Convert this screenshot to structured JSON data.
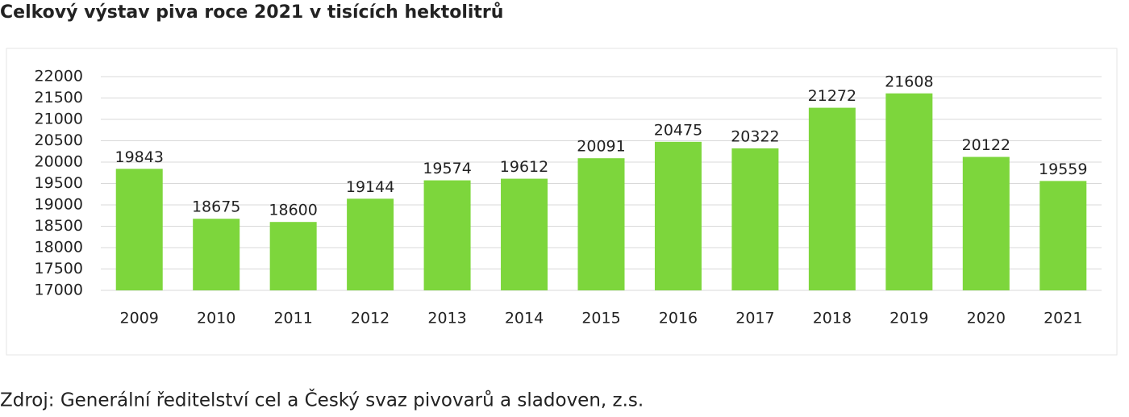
{
  "chart_data": {
    "type": "bar",
    "title": "Celkový výstav piva roce 2021 v tisících hektolitrů",
    "source": "Zdroj: Generální ředitelství cel a Český svaz pivovarů a sladoven, z.s.",
    "categories": [
      "2009",
      "2010",
      "2011",
      "2012",
      "2013",
      "2014",
      "2015",
      "2016",
      "2017",
      "2018",
      "2019",
      "2020",
      "2021"
    ],
    "values": [
      19843,
      18675,
      18600,
      19144,
      19574,
      19612,
      20091,
      20475,
      20322,
      21272,
      21608,
      20122,
      19559
    ],
    "color": "#7dd63c",
    "ylim": [
      17000,
      22000
    ],
    "yticks": [
      17000,
      17500,
      18000,
      18500,
      19000,
      19500,
      20000,
      20500,
      21000,
      21500,
      22000
    ],
    "grid": true
  }
}
